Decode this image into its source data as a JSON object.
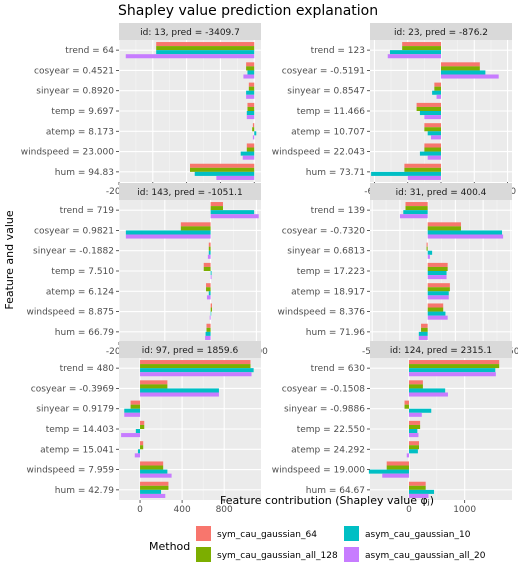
{
  "title": "Shapley value prediction explanation",
  "chart_data": {
    "type": "bar",
    "orientation": "horizontal",
    "xlabel": "Feature contribution (Shapley value φⱼ)",
    "ylabel": "Feature and value",
    "legend": {
      "title": "Method",
      "placement": "bottom",
      "entries": [
        {
          "name": "sym_cau_gaussian_64",
          "color": "#F8766D"
        },
        {
          "name": "sym_cau_gaussian_all_128",
          "color": "#7CAE00"
        },
        {
          "name": "asym_cau_gaussian_10",
          "color": "#00BFC4"
        },
        {
          "name": "asym_cau_gaussian_all_20",
          "color": "#C77CFF"
        }
      ]
    },
    "series_colors": [
      "#F8766D",
      "#7CAE00",
      "#00BFC4",
      "#C77CFF"
    ],
    "grid": true,
    "panels": [
      {
        "strip": "id: 13, pred = -3409.7",
        "xlim": [
          -2000,
          100
        ],
        "xticks": [
          -2000,
          -1500,
          -1000,
          -500,
          0
        ],
        "features": [
          "trend = 64",
          "cosyear = 0.4521",
          "sinyear = 0.8920",
          "temp = 9.697",
          "atemp = 8.173",
          "windspeed = 23.000",
          "hum = 94.83"
        ],
        "values": [
          [
            -1450,
            -1450,
            -1450,
            -1900
          ],
          [
            -120,
            -120,
            -100,
            -160
          ],
          [
            -80,
            -80,
            -120,
            -120
          ],
          [
            -100,
            -100,
            -110,
            -110
          ],
          [
            -20,
            -30,
            30,
            -20
          ],
          [
            -110,
            -110,
            -200,
            -170
          ],
          [
            -950,
            -950,
            -880,
            -560
          ]
        ]
      },
      {
        "strip": "id: 23, pred =  -876.2",
        "xlim": [
          -640,
          640
        ],
        "xticks": [
          -600,
          -300,
          0,
          300,
          600
        ],
        "features": [
          "trend = 123",
          "cosyear = -0.5191",
          "sinyear = 0.8547",
          "temp = 11.466",
          "atemp = 10.707",
          "windspeed = 22.043",
          "hum = 73.71"
        ],
        "values": [
          [
            -350,
            -350,
            -460,
            -480
          ],
          [
            350,
            350,
            400,
            520
          ],
          [
            -60,
            -60,
            -80,
            -40
          ],
          [
            -220,
            -220,
            -190,
            -150
          ],
          [
            -150,
            -150,
            -120,
            -90
          ],
          [
            -150,
            -150,
            -190,
            -120
          ],
          [
            -330,
            -330,
            -630,
            -300
          ]
        ]
      },
      {
        "strip": "id: 143, pred = -1051.1",
        "xlim": [
          -2000,
          1100
        ],
        "xticks": [
          -2000,
          -1000,
          0,
          1000
        ],
        "features": [
          "trend = 719",
          "cosyear = 0.9821",
          "sinyear = -0.1882",
          "temp = 7.510",
          "atemp = 6.124",
          "windspeed = 8.875",
          "hum = 66.79"
        ],
        "values": [
          [
            270,
            270,
            950,
            1050
          ],
          [
            -650,
            -650,
            -1850,
            -1850
          ],
          [
            -40,
            -40,
            -40,
            -60
          ],
          [
            -150,
            -150,
            20,
            20
          ],
          [
            -100,
            -100,
            -40,
            -80
          ],
          [
            30,
            30,
            10,
            -20
          ],
          [
            -90,
            -90,
            -110,
            -120
          ]
        ]
      },
      {
        "strip": "id: 31, pred =  400.4",
        "xlim": [
          -520,
          760
        ],
        "xticks": [
          -500,
          -250,
          0,
          250,
          500,
          750
        ],
        "features": [
          "trend = 139",
          "cosyear = -0.7320",
          "sinyear = 0.6813",
          "temp = 17.223",
          "atemp = 18.917",
          "windspeed = 8.376",
          "hum = 71.96"
        ],
        "values": [
          [
            -200,
            -200,
            -220,
            -250
          ],
          [
            300,
            300,
            670,
            680
          ],
          [
            -10,
            -10,
            40,
            20
          ],
          [
            180,
            180,
            170,
            170
          ],
          [
            200,
            200,
            190,
            190
          ],
          [
            140,
            140,
            160,
            180
          ],
          [
            -60,
            -60,
            -80,
            -80
          ]
        ]
      },
      {
        "strip": "id: 97, pred =  1859.6",
        "xlim": [
          -200,
          1150
        ],
        "xticks": [
          0,
          400,
          800
        ],
        "features": [
          "trend = 480",
          "cosyear = -0.3969",
          "sinyear = 0.9179",
          "temp = 14.403",
          "atemp = 15.041",
          "windspeed = 7.959",
          "hum = 42.79"
        ],
        "values": [
          [
            1050,
            1050,
            1080,
            1060
          ],
          [
            260,
            260,
            750,
            750
          ],
          [
            -90,
            -90,
            -150,
            -150
          ],
          [
            40,
            40,
            -40,
            -180
          ],
          [
            30,
            30,
            -20,
            -50
          ],
          [
            220,
            220,
            260,
            300
          ],
          [
            270,
            270,
            200,
            240
          ]
        ]
      },
      {
        "strip": "id: 124, pred =  2315.1",
        "xlim": [
          -700,
          1850
        ],
        "xticks": [
          0,
          1000
        ],
        "features": [
          "trend = 630",
          "cosyear = -0.1508",
          "sinyear = -0.9886",
          "temp = 22.550",
          "atemp = 24.292",
          "windspeed = 19.000",
          "hum = 64.67"
        ],
        "values": [
          [
            1620,
            1620,
            1550,
            1560
          ],
          [
            250,
            250,
            650,
            700
          ],
          [
            -80,
            -80,
            400,
            230
          ],
          [
            200,
            200,
            150,
            170
          ],
          [
            180,
            180,
            160,
            -40
          ],
          [
            -400,
            -400,
            -720,
            -480
          ],
          [
            300,
            300,
            450,
            350
          ]
        ]
      }
    ]
  }
}
